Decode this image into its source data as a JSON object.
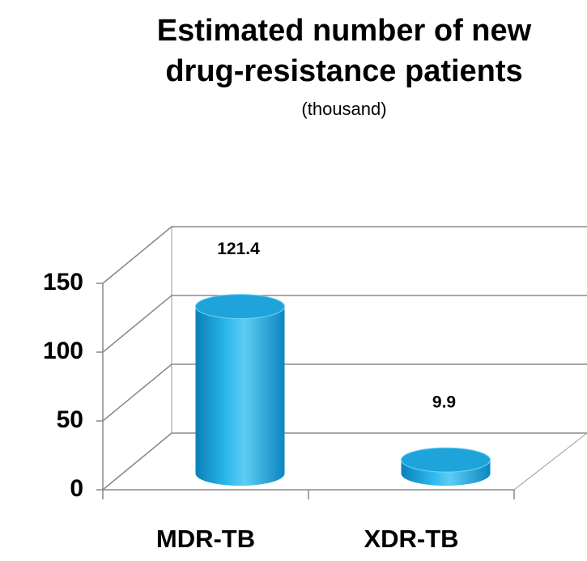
{
  "chart_data": {
    "type": "bar",
    "title": "Estimated number of new drug-resistance patients",
    "title_lines": [
      "Estimated number of new",
      "drug-resistance patients"
    ],
    "subtitle": "(thousand)",
    "categories": [
      "MDR-TB",
      "XDR-TB"
    ],
    "values": [
      121.4,
      9.9
    ],
    "color": "#1aa6dc",
    "ylim": [
      0,
      150
    ],
    "yticks": [
      0,
      50,
      100,
      150
    ],
    "grid": true
  }
}
